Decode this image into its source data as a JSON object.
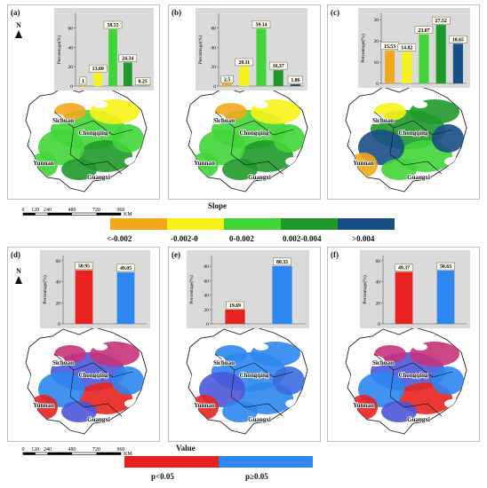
{
  "figure": {
    "panels": [
      {
        "id": "a",
        "label": "(a)",
        "ytitle": "Percentage(%)",
        "yticks": [
          "0",
          "20",
          "40",
          "60"
        ],
        "map_kind": "slope",
        "region_labels": [
          "Sichuan",
          "Chongqing",
          "Yunnan",
          "Guangxi"
        ]
      },
      {
        "id": "b",
        "label": "(b)",
        "ytitle": "Percentage(%)",
        "yticks": [
          "0",
          "20",
          "40",
          "60"
        ],
        "map_kind": "slope",
        "region_labels": [
          "Sichuan",
          "Chongqing",
          "Yunnan",
          "Guangxi"
        ]
      },
      {
        "id": "c",
        "label": "(c)",
        "ytitle": "Percentage(%)",
        "yticks": [
          "0",
          "10",
          "20",
          "30"
        ],
        "map_kind": "slope",
        "region_labels": [
          "Sichuan",
          "Chongqing",
          "Yunnan",
          "Guangxi"
        ]
      },
      {
        "id": "d",
        "label": "(d)",
        "ytitle": "Percentage(%)",
        "yticks": [
          "0",
          "20",
          "40",
          "60"
        ],
        "map_kind": "p",
        "region_labels": [
          "Sichuan",
          "Chongqing",
          "Yunnan",
          "Guangxi"
        ]
      },
      {
        "id": "e",
        "label": "(e)",
        "ytitle": "Percentage(%)",
        "yticks": [
          "0",
          "20",
          "40",
          "60",
          "80"
        ],
        "map_kind": "p",
        "region_labels": [
          "Sichuan",
          "Chongqing",
          "Yunnan",
          "Guangxi"
        ]
      },
      {
        "id": "f",
        "label": "(f)",
        "ytitle": "Percentage(%)",
        "yticks": [
          "0",
          "20",
          "40",
          "60"
        ],
        "map_kind": "p",
        "region_labels": [
          "Sichuan",
          "Chongqing",
          "Yunnan",
          "Guangxi"
        ]
      }
    ],
    "north_label": "N",
    "scalebar": {
      "ticks": [
        "0",
        "120",
        "240",
        "480",
        "720",
        "960"
      ],
      "unit": "KM"
    },
    "slope_legend": {
      "title": "Slope",
      "classes": [
        {
          "label": "<-0.002",
          "color": "#f2a81d"
        },
        {
          "label": "-0.002-0",
          "color": "#f7f31a"
        },
        {
          "label": "0-0.002",
          "color": "#41d53a"
        },
        {
          "label": "0.002-0.004",
          "color": "#1f9a2a"
        },
        {
          "label": ">0.004",
          "color": "#1a4f86"
        }
      ]
    },
    "value_legend": {
      "title": "Value",
      "classes": [
        {
          "label": "p<0.05",
          "color": "#e8231f"
        },
        {
          "label": "p≥0.05",
          "color": "#2e86f0"
        }
      ]
    }
  },
  "chart_data": [
    {
      "type": "bar",
      "panel": "a",
      "categories": [
        "<-0.002",
        "-0.002-0",
        "0-0.002",
        "0.002-0.004",
        ">0.004"
      ],
      "values": [
        1,
        13.6,
        58.55,
        24.34,
        0.25
      ],
      "value_labels": [
        "1",
        "13.60",
        "58.55",
        "24.34",
        "0.25"
      ],
      "colors": [
        "#f2a81d",
        "#f7f31a",
        "#41d53a",
        "#1f9a2a",
        "#1a4f86"
      ],
      "ylabel": "Percentage(%)",
      "ylim": [
        0,
        75
      ]
    },
    {
      "type": "bar",
      "panel": "b",
      "categories": [
        "<-0.002",
        "-0.002-0",
        "0-0.002",
        "0.002-0.004",
        ">0.004"
      ],
      "values": [
        2.5,
        20.11,
        59.14,
        16.37,
        1.86
      ],
      "value_labels": [
        "2.5",
        "20.11",
        "59.14",
        "16.37",
        "1.86"
      ],
      "colors": [
        "#f2a81d",
        "#f7f31a",
        "#41d53a",
        "#1f9a2a",
        "#1a4f86"
      ],
      "ylabel": "Percentage(%)",
      "ylim": [
        0,
        75
      ]
    },
    {
      "type": "bar",
      "panel": "c",
      "categories": [
        "<-0.002",
        "-0.002-0",
        "0-0.002",
        "0.002-0.004",
        ">0.004"
      ],
      "values": [
        15.53,
        14.82,
        23.07,
        27.52,
        18.65
      ],
      "value_labels": [
        "15.53",
        "14.82",
        "23.07",
        "27.52",
        "18.65"
      ],
      "colors": [
        "#f2a81d",
        "#f7f31a",
        "#41d53a",
        "#1f9a2a",
        "#1a4f86"
      ],
      "ylabel": "Percentage(%)",
      "ylim": [
        0,
        33
      ]
    },
    {
      "type": "bar",
      "panel": "d",
      "categories": [
        "p<0.05",
        "p≥0.05"
      ],
      "values": [
        50.95,
        49.05
      ],
      "value_labels": [
        "50.95",
        "49.05"
      ],
      "colors": [
        "#e8231f",
        "#2e86f0"
      ],
      "ylabel": "Percentage(%)",
      "ylim": [
        0,
        65
      ]
    },
    {
      "type": "bar",
      "panel": "e",
      "categories": [
        "p<0.05",
        "p≥0.05"
      ],
      "values": [
        19.69,
        80.33
      ],
      "value_labels": [
        "19.69",
        "80.33"
      ],
      "colors": [
        "#e8231f",
        "#2e86f0"
      ],
      "ylabel": "Percentage(%)",
      "ylim": [
        0,
        95
      ]
    },
    {
      "type": "bar",
      "panel": "f",
      "categories": [
        "p<0.05",
        "p≥0.05"
      ],
      "values": [
        49.37,
        50.63
      ],
      "value_labels": [
        "49.37",
        "50.63"
      ],
      "colors": [
        "#e8231f",
        "#2e86f0"
      ],
      "ylabel": "Percentage(%)",
      "ylim": [
        0,
        65
      ]
    }
  ]
}
